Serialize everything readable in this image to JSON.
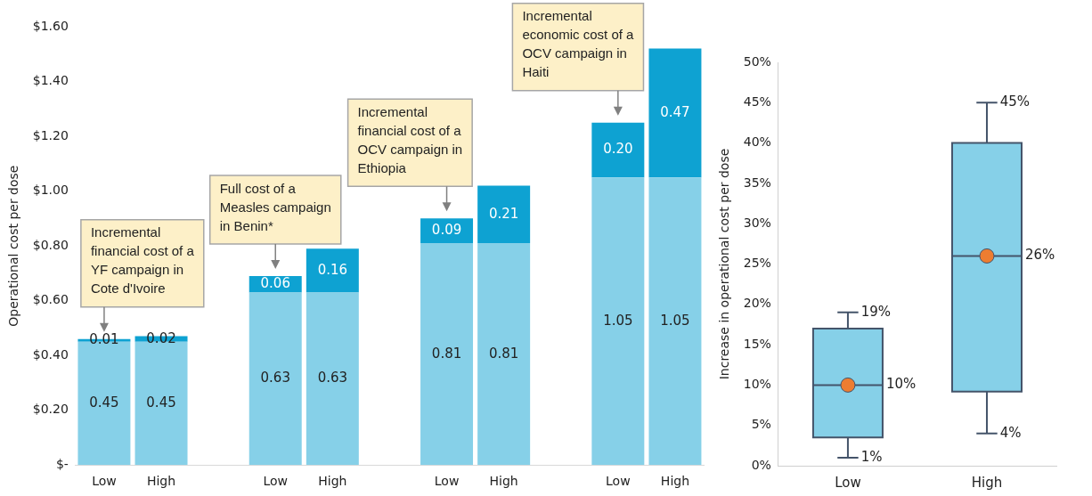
{
  "chart_data": [
    {
      "type": "bar",
      "stacked": true,
      "ylabel": "Operational cost per dose",
      "categories": [
        "Low",
        "High",
        null,
        "Low",
        "High",
        null,
        "Low",
        "High",
        null,
        "Low",
        "High"
      ],
      "series": [
        {
          "color": "#86d0e8",
          "values": [
            0.45,
            0.45,
            null,
            0.63,
            0.63,
            null,
            0.81,
            0.81,
            null,
            1.05,
            1.05
          ],
          "value_labels": [
            "0.45",
            "0.45",
            null,
            "0.63",
            "0.63",
            null,
            "0.81",
            "0.81",
            null,
            "1.05",
            "1.05"
          ]
        },
        {
          "color": "#0ea2d2",
          "values": [
            0.01,
            0.02,
            null,
            0.06,
            0.16,
            null,
            0.09,
            0.21,
            null,
            0.2,
            0.47
          ],
          "value_labels": [
            "0.01",
            "0.02",
            null,
            "0.06",
            "0.16",
            null,
            "0.09",
            "0.21",
            null,
            "0.20",
            "0.47"
          ]
        }
      ],
      "ylim": [
        0,
        1.6
      ],
      "yticks": [
        {
          "value": 0,
          "label": "$-"
        },
        {
          "value": 0.2,
          "label": "$0.20"
        },
        {
          "value": 0.4,
          "label": "$0.40"
        },
        {
          "value": 0.6,
          "label": "$0.60"
        },
        {
          "value": 0.8,
          "label": "$0.80"
        },
        {
          "value": 1.0,
          "label": "$1.00"
        },
        {
          "value": 1.2,
          "label": "$1.20"
        },
        {
          "value": 1.4,
          "label": "$1.40"
        },
        {
          "value": 1.6,
          "label": "$1.60"
        }
      ],
      "grid": false,
      "legend": false,
      "annotations": [
        "Incremental financial cost of a YF campaign in Cote d'Ivoire",
        "Full cost of a Measles campaign in Benin*",
        "Incremental financial cost of a OCV campaign in Ethiopia",
        "Incremental economic cost of a OCV campaign in Haiti"
      ]
    },
    {
      "type": "box",
      "ylabel": "Increase in operational cost per dose",
      "categories": [
        "Low",
        "High"
      ],
      "series": [
        {
          "color": "#86d0e8",
          "boxes": [
            {
              "low": 1,
              "q1": 3.5,
              "median": 10,
              "q3": 17,
              "high": 19,
              "mean": 10
            },
            {
              "low": 4,
              "q1": 9.2,
              "median": 26,
              "q3": 40,
              "high": 45,
              "mean": 26
            }
          ]
        }
      ],
      "ylim": [
        0,
        50
      ],
      "yticks": [
        {
          "value": 0,
          "label": "0%"
        },
        {
          "value": 5,
          "label": "5%"
        },
        {
          "value": 10,
          "label": "10%"
        },
        {
          "value": 15,
          "label": "15%"
        },
        {
          "value": 20,
          "label": "20%"
        },
        {
          "value": 25,
          "label": "25%"
        },
        {
          "value": 30,
          "label": "30%"
        },
        {
          "value": 35,
          "label": "35%"
        },
        {
          "value": 40,
          "label": "40%"
        },
        {
          "value": 45,
          "label": "45%"
        },
        {
          "value": 50,
          "label": "50%"
        }
      ],
      "grid": false,
      "legend": false,
      "annotations": [
        {
          "text": "19%",
          "x": "Low",
          "y": 19
        },
        {
          "text": "1%",
          "x": "Low",
          "y": 1
        },
        {
          "text": "10%",
          "x": "Low",
          "y": 10
        },
        {
          "text": "45%",
          "x": "High",
          "y": 45
        },
        {
          "text": "4%",
          "x": "High",
          "y": 4
        },
        {
          "text": "26%",
          "x": "High",
          "y": 26
        }
      ]
    }
  ]
}
